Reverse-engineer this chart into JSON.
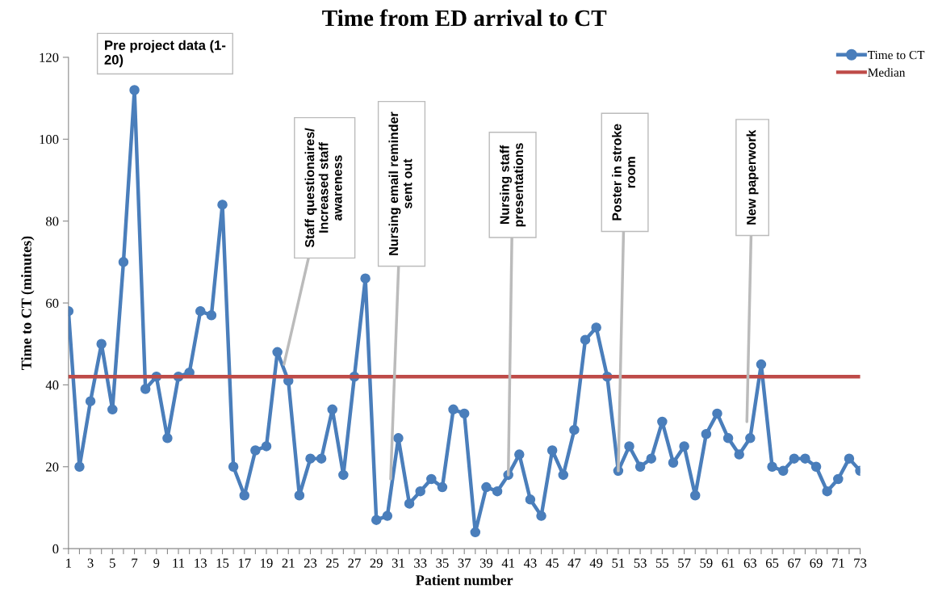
{
  "chart_data": {
    "type": "line",
    "title": "Time from ED arrival to CT",
    "xlabel": "Patient number",
    "ylabel": "Time to CT (minutes)",
    "x": [
      1,
      2,
      3,
      4,
      5,
      6,
      7,
      8,
      9,
      10,
      11,
      12,
      13,
      14,
      15,
      16,
      17,
      18,
      19,
      20,
      21,
      22,
      23,
      24,
      25,
      26,
      27,
      28,
      29,
      30,
      31,
      32,
      33,
      34,
      35,
      36,
      37,
      38,
      39,
      40,
      41,
      42,
      43,
      44,
      45,
      46,
      47,
      48,
      49,
      50,
      51,
      52,
      53,
      54,
      55,
      56,
      57,
      58,
      59,
      60,
      61,
      62,
      63,
      64,
      65,
      66,
      67,
      68,
      69,
      70,
      71,
      72,
      73
    ],
    "series": [
      {
        "name": "Time to CT",
        "color": "#4a7ebb",
        "marker": "circle",
        "values": [
          58,
          20,
          36,
          50,
          34,
          70,
          112,
          39,
          42,
          27,
          42,
          43,
          58,
          57,
          84,
          20,
          13,
          24,
          25,
          48,
          41,
          13,
          22,
          22,
          34,
          18,
          42,
          66,
          7,
          8,
          27,
          11,
          14,
          17,
          15,
          34,
          33,
          4,
          15,
          14,
          18,
          23,
          12,
          8,
          24,
          18,
          29,
          51,
          54,
          42,
          19,
          25,
          20,
          22,
          31,
          21,
          25,
          13,
          28,
          33,
          27,
          23,
          27,
          45,
          20,
          19,
          22,
          22,
          20,
          14,
          17,
          22,
          19
        ]
      },
      {
        "name": "Median",
        "color": "#be4b48",
        "marker": "none",
        "values": [
          42,
          42,
          42,
          42,
          42,
          42,
          42,
          42,
          42,
          42,
          42,
          42,
          42,
          42,
          42,
          42,
          42,
          42,
          42,
          42,
          42,
          42,
          42,
          42,
          42,
          42,
          42,
          42,
          42,
          42,
          42,
          42,
          42,
          42,
          42,
          42,
          42,
          42,
          42,
          42,
          42,
          42,
          42,
          42,
          42,
          42,
          42,
          42,
          42,
          42,
          42,
          42,
          42,
          42,
          42,
          42,
          42,
          42,
          42,
          42,
          42,
          42,
          42,
          42,
          42,
          42,
          42,
          42,
          42,
          42,
          42,
          42,
          42
        ]
      }
    ],
    "xlim": [
      1,
      73
    ],
    "xticks": [
      1,
      {
        "value": 2,
        "label": null
      },
      3,
      {
        "value": 4,
        "label": null
      },
      5,
      {
        "value": 6,
        "label": null
      },
      7,
      {
        "value": 8,
        "label": null
      },
      9,
      {
        "value": 10,
        "label": null
      },
      11,
      {
        "value": 12,
        "label": null
      },
      13,
      {
        "value": 14,
        "label": null
      },
      15,
      {
        "value": 16,
        "label": null
      },
      17,
      {
        "value": 18,
        "label": null
      },
      19,
      {
        "value": 20,
        "label": null
      },
      21,
      {
        "value": 22,
        "label": null
      },
      23,
      {
        "value": 24,
        "label": null
      },
      25,
      {
        "value": 26,
        "label": null
      },
      27,
      {
        "value": 28,
        "label": null
      },
      29,
      {
        "value": 30,
        "label": null
      },
      31,
      {
        "value": 32,
        "label": null
      },
      33,
      {
        "value": 34,
        "label": null
      },
      35,
      {
        "value": 36,
        "label": null
      },
      37,
      {
        "value": 38,
        "label": null
      },
      39,
      {
        "value": 40,
        "label": null
      },
      41,
      {
        "value": 42,
        "label": null
      },
      43,
      {
        "value": 44,
        "label": null
      },
      45,
      {
        "value": 46,
        "label": null
      },
      47,
      {
        "value": 48,
        "label": null
      },
      49,
      {
        "value": 50,
        "label": null
      },
      51,
      {
        "value": 52,
        "label": null
      },
      53,
      {
        "value": 54,
        "label": null
      },
      55,
      {
        "value": 56,
        "label": null
      },
      57,
      {
        "value": 58,
        "label": null
      },
      59,
      {
        "value": 60,
        "label": null
      },
      61,
      {
        "value": 62,
        "label": null
      },
      63,
      {
        "value": 64,
        "label": null
      },
      65,
      {
        "value": 66,
        "label": null
      },
      67,
      {
        "value": 68,
        "label": null
      },
      69,
      {
        "value": 70,
        "label": null
      },
      71,
      {
        "value": 72,
        "label": null
      },
      73
    ],
    "ylim": [
      0,
      120
    ],
    "yticks": [
      0,
      20,
      40,
      60,
      80,
      100,
      120
    ],
    "grid": false,
    "legend": "top right",
    "line_style": "solid",
    "annotations": [
      "Pre project data (1-\n20)",
      {
        "text": "Staff questionaires/\nIncreased staff\nawareness",
        "x": 20.6,
        "y": 45
      },
      {
        "text": "Nursing email reminder\nsent out",
        "x": 30.3,
        "y": 17
      },
      {
        "text": "Nursing staff\npresentations",
        "x": 41,
        "y": 18
      },
      {
        "text": "Poster in stroke\nroom",
        "x": 51,
        "y": 19
      },
      {
        "text": "New paperwork",
        "x": 62.7,
        "y": 31
      }
    ]
  }
}
